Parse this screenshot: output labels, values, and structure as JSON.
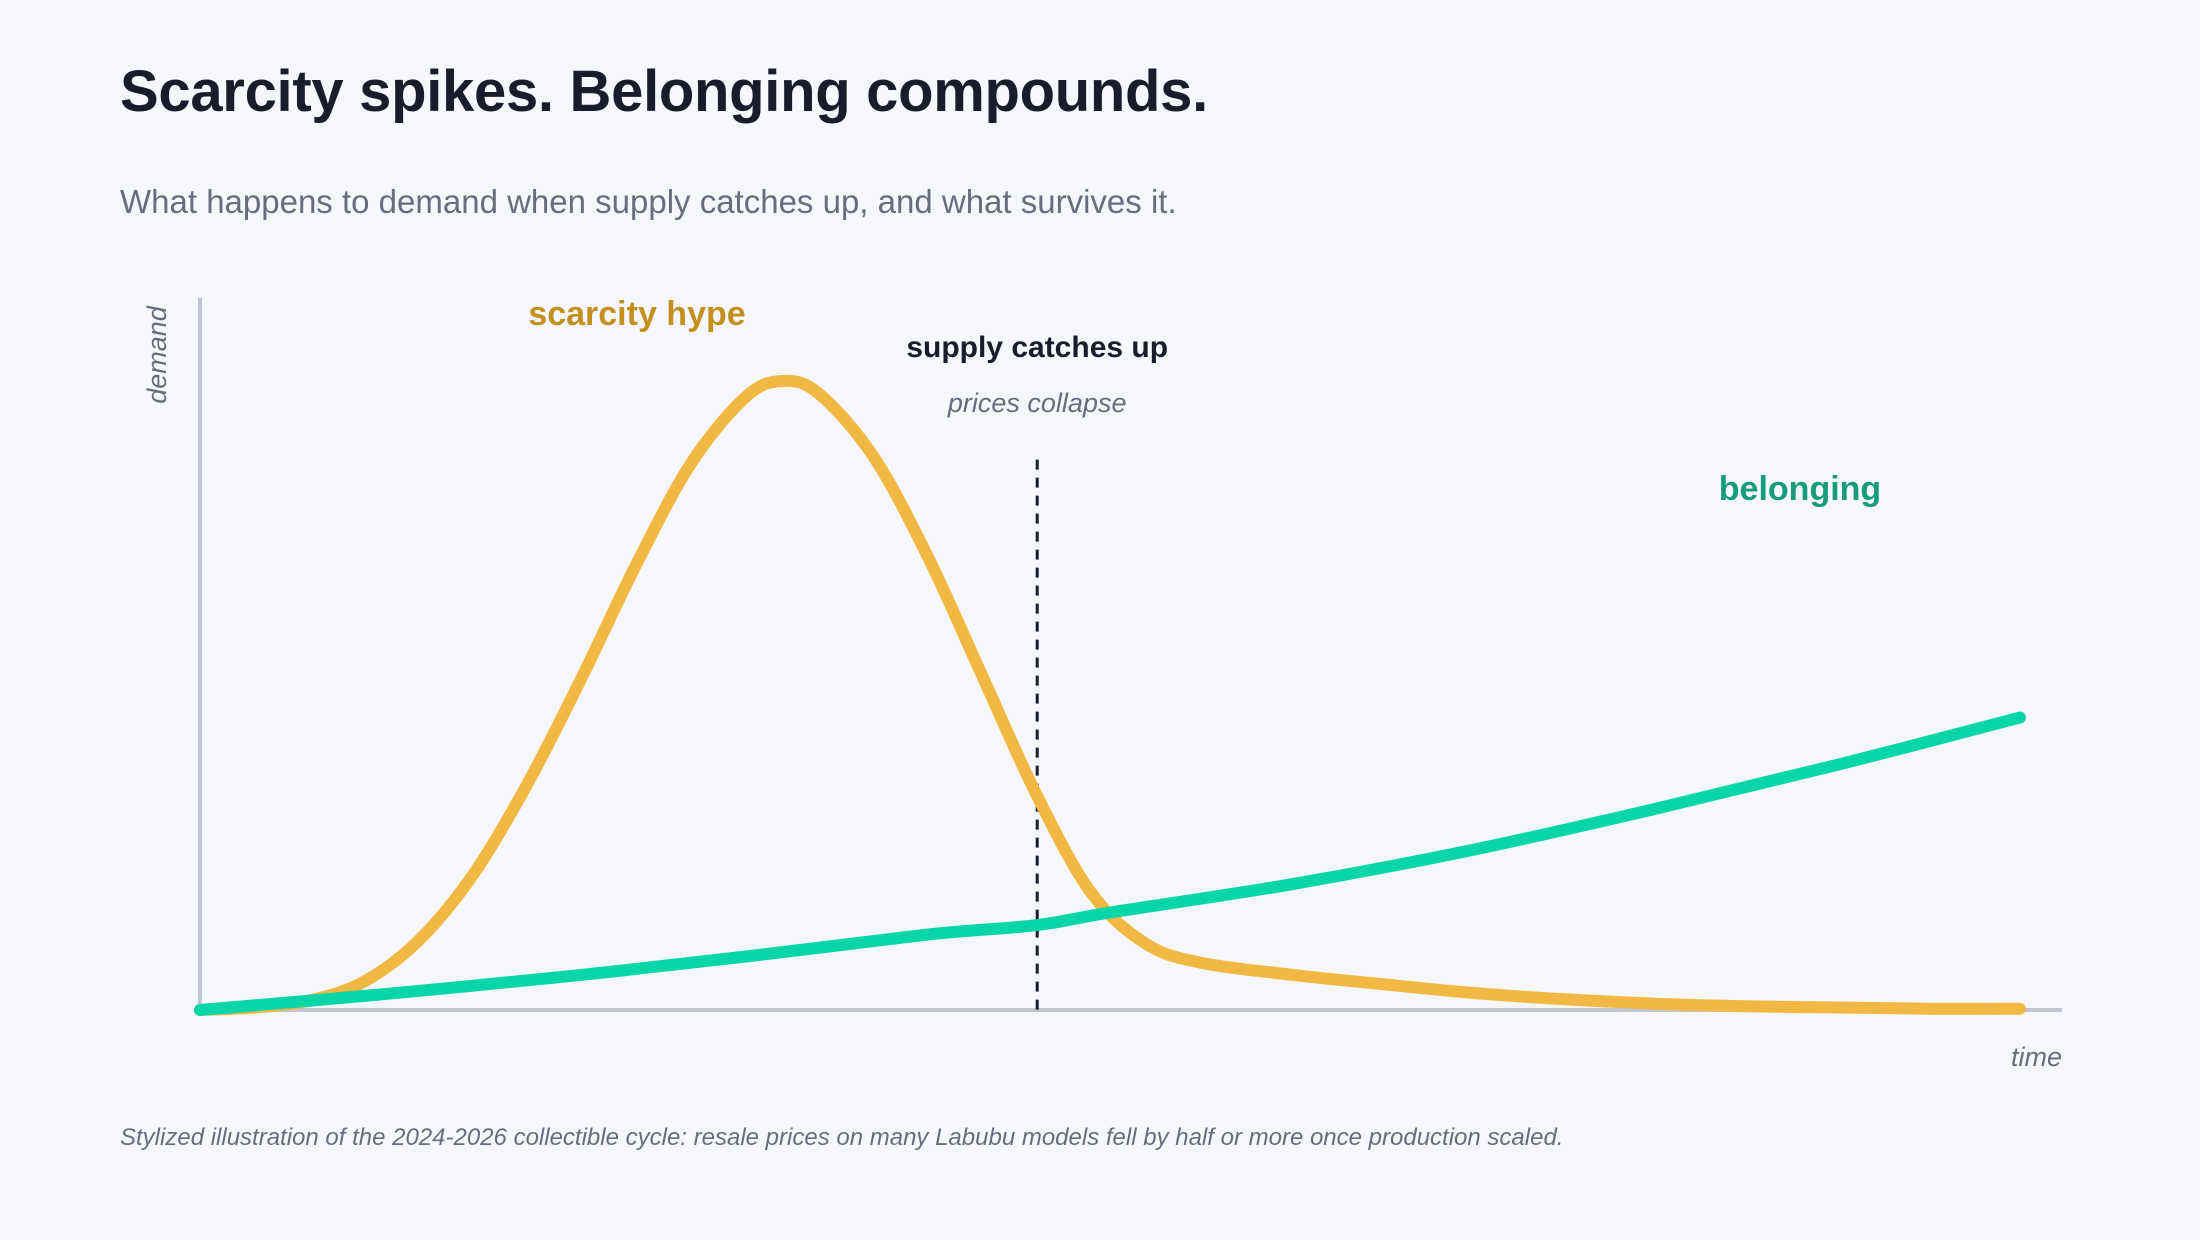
{
  "header": {
    "title": "Scarcity spikes. Belonging compounds.",
    "subtitle": "What happens to demand when supply catches up, and what survives it."
  },
  "footer": {
    "caption": "Stylized illustration of the 2024-2026 collectible cycle: resale prices on many Labubu models fell by half or more once production scaled."
  },
  "chart_data": {
    "type": "line",
    "xlabel": "time",
    "ylabel": "demand",
    "xlim": [
      0,
      1
    ],
    "ylim": [
      0,
      1.05
    ],
    "grid": false,
    "legend": "inline labels",
    "x_ticks": "none",
    "y_ticks": "none",
    "series": [
      {
        "name": "scarcity hype",
        "color": "#f2b844",
        "label_color": "#c48f1e",
        "points": [
          [
            0.0,
            0.0
          ],
          [
            0.03,
            0.004
          ],
          [
            0.06,
            0.015
          ],
          [
            0.09,
            0.045
          ],
          [
            0.12,
            0.11
          ],
          [
            0.15,
            0.215
          ],
          [
            0.18,
            0.36
          ],
          [
            0.21,
            0.53
          ],
          [
            0.24,
            0.71
          ],
          [
            0.27,
            0.87
          ],
          [
            0.3,
            0.975
          ],
          [
            0.32,
            1.0
          ],
          [
            0.34,
            0.98
          ],
          [
            0.37,
            0.88
          ],
          [
            0.4,
            0.72
          ],
          [
            0.43,
            0.53
          ],
          [
            0.46,
            0.34
          ],
          [
            0.49,
            0.185
          ],
          [
            0.52,
            0.105
          ],
          [
            0.55,
            0.075
          ],
          [
            0.6,
            0.056
          ],
          [
            0.65,
            0.041
          ],
          [
            0.7,
            0.027
          ],
          [
            0.75,
            0.017
          ],
          [
            0.8,
            0.01
          ],
          [
            0.85,
            0.006
          ],
          [
            0.9,
            0.004
          ],
          [
            0.95,
            0.002
          ],
          [
            1.0,
            0.002
          ]
        ]
      },
      {
        "name": "belonging",
        "color": "#08d6a8",
        "label_color": "#169c7c",
        "points": [
          [
            0.0,
            0.0
          ],
          [
            0.1,
            0.025
          ],
          [
            0.2,
            0.053
          ],
          [
            0.3,
            0.085
          ],
          [
            0.4,
            0.12
          ],
          [
            0.46,
            0.135
          ],
          [
            0.5,
            0.155
          ],
          [
            0.6,
            0.2
          ],
          [
            0.7,
            0.255
          ],
          [
            0.8,
            0.32
          ],
          [
            0.9,
            0.39
          ],
          [
            1.0,
            0.465
          ]
        ]
      }
    ],
    "annotations": [
      {
        "type": "vline",
        "x": 0.46,
        "y_top": 0.875,
        "label": "supply catches up",
        "sublabel": "prices collapse"
      }
    ]
  }
}
